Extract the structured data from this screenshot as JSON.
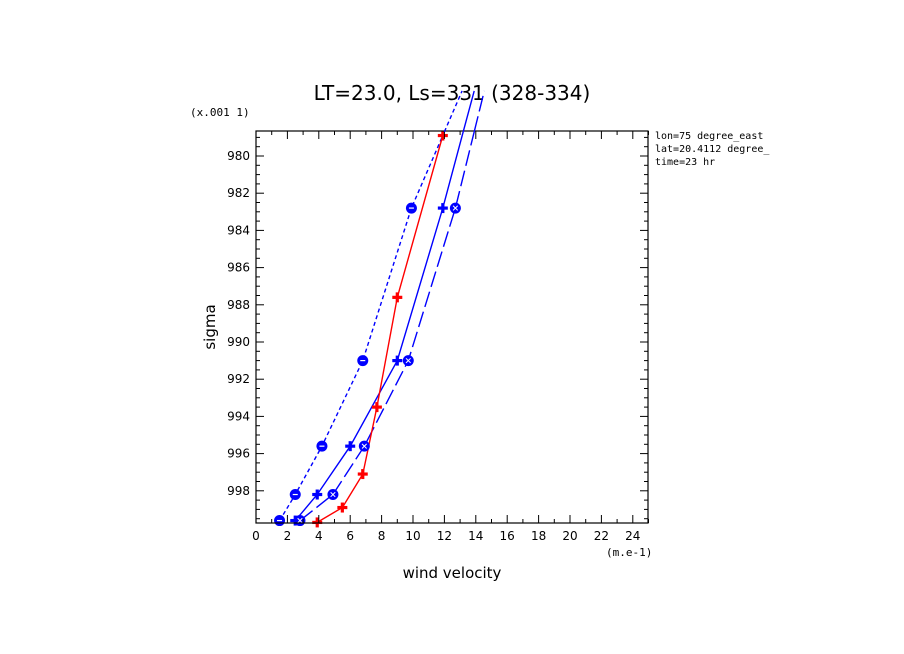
{
  "chart_data": {
    "type": "line",
    "title": "LT=23.0, Ls=331 (328-334)",
    "xlabel": "wind velocity",
    "ylabel": "sigma",
    "x_unit": "(m.e-1)",
    "y_unit": "(x.001 1)",
    "xlim": [
      0,
      25
    ],
    "ylim": [
      999.8,
      978.7
    ],
    "x_ticks": [
      "0",
      "2",
      "4",
      "6",
      "8",
      "10",
      "12",
      "14",
      "16",
      "18",
      "20",
      "22",
      "24"
    ],
    "y_ticks": [
      "980",
      "982",
      "984",
      "986",
      "988",
      "990",
      "992",
      "994",
      "996",
      "998"
    ],
    "annotations": [
      "lon=75 degree_east",
      "lat=20.4112 degree_",
      "time=23 hr"
    ],
    "colors": {
      "red": "#ff0000",
      "blue": "#0000ff",
      "frame": "#000000"
    },
    "series": [
      {
        "color": "#0000ff",
        "dash": "short",
        "marker": "circle-dash",
        "points": [
          [
            1.5,
            999.6
          ],
          [
            2.5,
            998.2
          ],
          [
            4.2,
            995.6
          ],
          [
            6.8,
            991.0
          ],
          [
            9.9,
            982.8
          ],
          [
            12.0,
            978.7
          ]
        ]
      },
      {
        "color": "#0000ff",
        "dash": "solid",
        "marker": "plus",
        "points": [
          [
            2.5,
            999.6
          ],
          [
            3.9,
            998.2
          ],
          [
            6.0,
            995.6
          ],
          [
            9.0,
            991.0
          ],
          [
            11.9,
            982.8
          ],
          [
            13.2,
            978.7
          ]
        ]
      },
      {
        "color": "#0000ff",
        "dash": "long",
        "marker": "x-circle",
        "points": [
          [
            2.8,
            999.6
          ],
          [
            4.9,
            998.2
          ],
          [
            6.9,
            995.6
          ],
          [
            9.7,
            991.0
          ],
          [
            12.7,
            982.8
          ],
          [
            13.9,
            978.7
          ]
        ]
      },
      {
        "color": "#ff0000",
        "dash": "solid",
        "marker": "plus",
        "points": [
          [
            3.9,
            999.7
          ],
          [
            5.5,
            998.9
          ],
          [
            6.8,
            997.1
          ],
          [
            7.7,
            993.5
          ],
          [
            9.0,
            987.6
          ],
          [
            11.9,
            978.9
          ]
        ]
      }
    ]
  }
}
